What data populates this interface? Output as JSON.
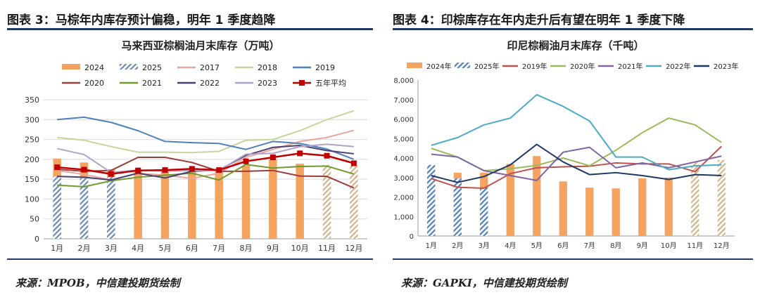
{
  "left": {
    "figure_title": "图表 3：马棕年内库存预计偏稳，明年 1 季度趋降",
    "source": "来源：MPOB，中信建投期货绘制",
    "chart_data": {
      "type": "bar+line",
      "title": "马来西亚棕榈油月末库存（万吨）",
      "categories": [
        "1月",
        "2月",
        "3月",
        "4月",
        "5月",
        "6月",
        "7月",
        "8月",
        "9月",
        "10月",
        "11月",
        "12月"
      ],
      "ylim": [
        0,
        350
      ],
      "yticks": [
        "0",
        "50",
        "100",
        "150",
        "200",
        "250",
        "300",
        "350"
      ],
      "grid": true,
      "legend_position": "top",
      "bars": [
        {
          "name": "2024",
          "style": "solid",
          "color": "#f4a460",
          "values": [
            202,
            192,
            175,
            172,
            172,
            172,
            172,
            184,
            200,
            189,
            null,
            null
          ]
        },
        {
          "name": "2025",
          "style": "hatch",
          "color": "#6a8bb3",
          "values": [
            157,
            152,
            155,
            null,
            null,
            null,
            null,
            null,
            null,
            null,
            null,
            null
          ]
        },
        {
          "name": "",
          "style": "hatch",
          "color": "#d2b48c",
          "values": [
            null,
            null,
            null,
            null,
            null,
            null,
            null,
            null,
            null,
            null,
            186,
            185
          ]
        }
      ],
      "series": [
        {
          "name": "2017",
          "color": "#e8a89c",
          "width": 2,
          "values": [
            172,
            162,
            148,
            165,
            160,
            152,
            165,
            205,
            225,
            245,
            255,
            273
          ]
        },
        {
          "name": "2018",
          "color": "#c4d79b",
          "width": 2,
          "values": [
            255,
            248,
            232,
            218,
            218,
            217,
            220,
            248,
            250,
            272,
            300,
            322
          ]
        },
        {
          "name": "2019",
          "color": "#4f81bd",
          "width": 2,
          "values": [
            300,
            306,
            293,
            272,
            245,
            242,
            240,
            225,
            245,
            240,
            226,
            200
          ]
        },
        {
          "name": "2020",
          "color": "#9e3b3b",
          "width": 2,
          "values": [
            175,
            170,
            172,
            205,
            205,
            192,
            170,
            170,
            172,
            158,
            157,
            128
          ]
        },
        {
          "name": "2021",
          "color": "#6e9a2e",
          "width": 2,
          "values": [
            135,
            131,
            146,
            155,
            160,
            165,
            148,
            187,
            178,
            182,
            183,
            163
          ]
        },
        {
          "name": "2022",
          "color": "#4b3f72",
          "width": 2,
          "values": [
            157,
            155,
            148,
            165,
            153,
            170,
            173,
            210,
            230,
            235,
            222,
            214
          ]
        },
        {
          "name": "2023",
          "color": "#b3a2c7",
          "width": 2,
          "values": [
            227,
            212,
            167,
            173,
            170,
            172,
            172,
            213,
            215,
            232,
            238,
            232
          ]
        },
        {
          "name": "五年平均",
          "color": "#c00000",
          "width": 2.5,
          "marker": "square",
          "values": [
            180,
            174,
            163,
            172,
            173,
            176,
            173,
            195,
            205,
            215,
            209,
            190
          ]
        }
      ]
    }
  },
  "right": {
    "figure_title": "图表 4：印棕库存在年内走升后有望在明年 1 季度下降",
    "source": "来源：GAPKI，中信建投期货绘制",
    "chart_data": {
      "type": "bar+line",
      "title": "印尼棕榈油月末库存（千吨）",
      "categories": [
        "1月",
        "2月",
        "3月",
        "4月",
        "5月",
        "6月",
        "7月",
        "8月",
        "9月",
        "10月",
        "11月",
        "12月"
      ],
      "ylim": [
        0,
        8000
      ],
      "yticks": [
        "0",
        "1,000",
        "2,000",
        "3,000",
        "4,000",
        "5,000",
        "6,000",
        "7,000",
        "8,000"
      ],
      "grid": false,
      "legend_position": "top",
      "bars": [
        {
          "name": "2024年",
          "style": "solid",
          "color": "#f4a460",
          "values": [
            3000,
            3250,
            3250,
            3700,
            4100,
            2800,
            2480,
            2440,
            2960,
            3000,
            null,
            null
          ]
        },
        {
          "name": "2025年",
          "style": "hatch",
          "color": "#4f81bd",
          "values": [
            3650,
            2950,
            2480,
            null,
            null,
            null,
            null,
            null,
            null,
            null,
            null,
            null
          ]
        },
        {
          "name": "",
          "style": "hatch",
          "color": "#d2b48c",
          "values": [
            null,
            null,
            null,
            null,
            null,
            null,
            null,
            null,
            null,
            null,
            3800,
            3900
          ]
        }
      ],
      "series": [
        {
          "name": "2019年",
          "color": "#c0504d",
          "width": 2,
          "values": [
            2950,
            2500,
            2450,
            3200,
            3500,
            3550,
            3580,
            3750,
            3700,
            3700,
            3300,
            4600
          ]
        },
        {
          "name": "2020年",
          "color": "#9bbb59",
          "width": 2,
          "values": [
            4500,
            4050,
            3350,
            3450,
            3620,
            4000,
            3600,
            4400,
            5300,
            6050,
            5700,
            4800
          ]
        },
        {
          "name": "2021年",
          "color": "#8064a2",
          "width": 2,
          "values": [
            4200,
            4050,
            3350,
            3100,
            2850,
            4300,
            4550,
            3500,
            3750,
            3500,
            3800,
            4100
          ]
        },
        {
          "name": "2022年",
          "color": "#4bacc6",
          "width": 2,
          "values": [
            4650,
            5050,
            5700,
            6050,
            7250,
            6650,
            5900,
            4050,
            4050,
            3400,
            3600,
            3650
          ]
        },
        {
          "name": "2023年",
          "color": "#1f3864",
          "width": 2,
          "values": [
            3100,
            2750,
            3050,
            3650,
            4700,
            3800,
            3150,
            3250,
            3100,
            2900,
            3150,
            3100
          ]
        }
      ]
    }
  }
}
